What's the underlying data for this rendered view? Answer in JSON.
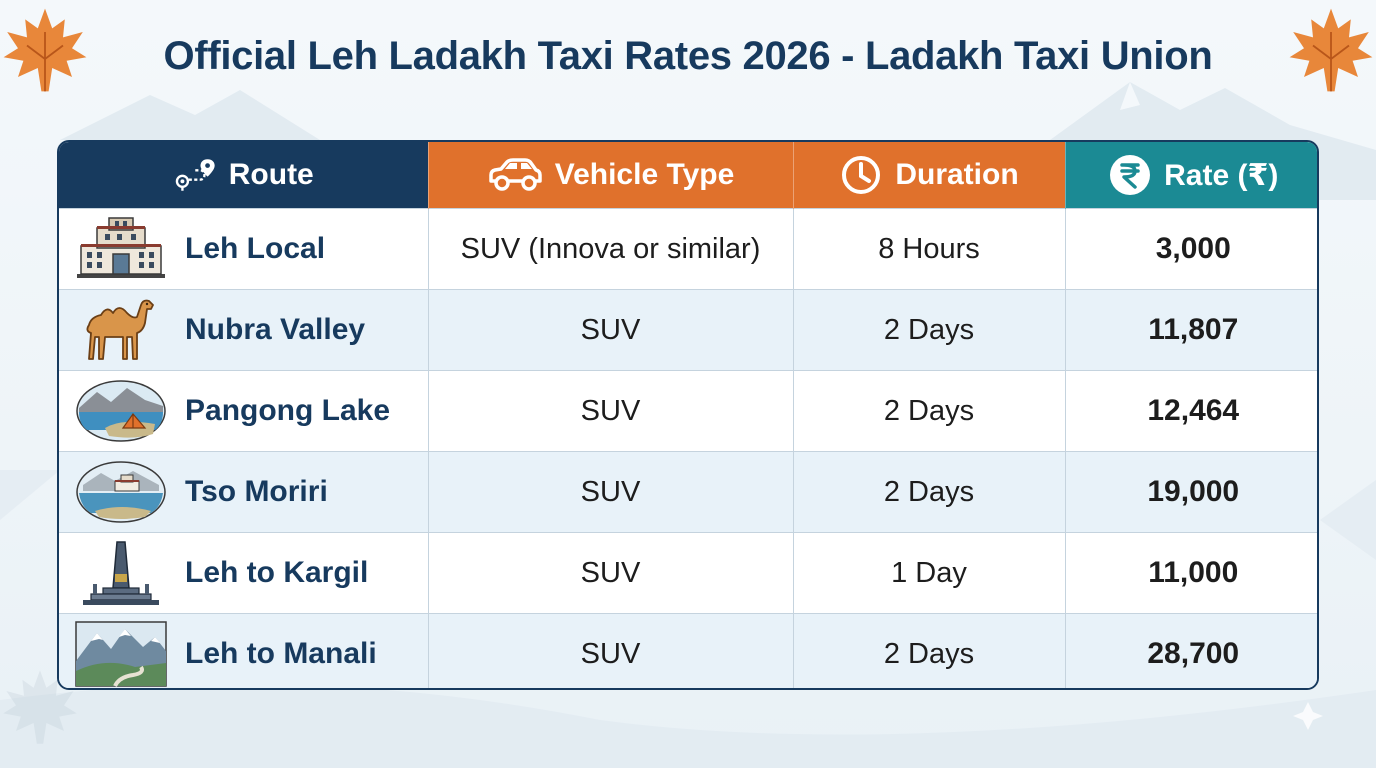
{
  "title": "Official Leh Ladakh Taxi Rates 2026 - Ladakh Taxi Union",
  "colors": {
    "title": "#173a5e",
    "header_route": "#173a5e",
    "header_vehicle": "#e0712c",
    "header_duration": "#e0712c",
    "header_rate": "#1b8a94",
    "route_text": "#173a5e",
    "leaf": "#e8873a"
  },
  "table": {
    "headers": [
      {
        "label": "Route",
        "icon": "route-pin-icon"
      },
      {
        "label": "Vehicle Type",
        "icon": "car-icon"
      },
      {
        "label": "Duration",
        "icon": "clock-icon"
      },
      {
        "label": "Rate (₹)",
        "icon": "rupee-icon"
      }
    ],
    "rows": [
      {
        "route": "Leh Local",
        "icon": "palace-icon",
        "vehicle": "SUV (Innova or similar)",
        "duration": "8 Hours",
        "rate": "3,000"
      },
      {
        "route": "Nubra Valley",
        "icon": "camel-icon",
        "vehicle": "SUV",
        "duration": "2 Days",
        "rate": "11,807"
      },
      {
        "route": "Pangong Lake",
        "icon": "lake-tent-icon",
        "vehicle": "SUV",
        "duration": "2 Days",
        "rate": "12,464"
      },
      {
        "route": "Tso Moriri",
        "icon": "lake-monastery-icon",
        "vehicle": "SUV",
        "duration": "2 Days",
        "rate": "19,000"
      },
      {
        "route": "Leh to Kargil",
        "icon": "war-memorial-icon",
        "vehicle": "SUV",
        "duration": "1 Day",
        "rate": "11,000"
      },
      {
        "route": "Leh to Manali",
        "icon": "mountain-road-icon",
        "vehicle": "SUV",
        "duration": "2 Days",
        "rate": "28,700"
      }
    ]
  }
}
